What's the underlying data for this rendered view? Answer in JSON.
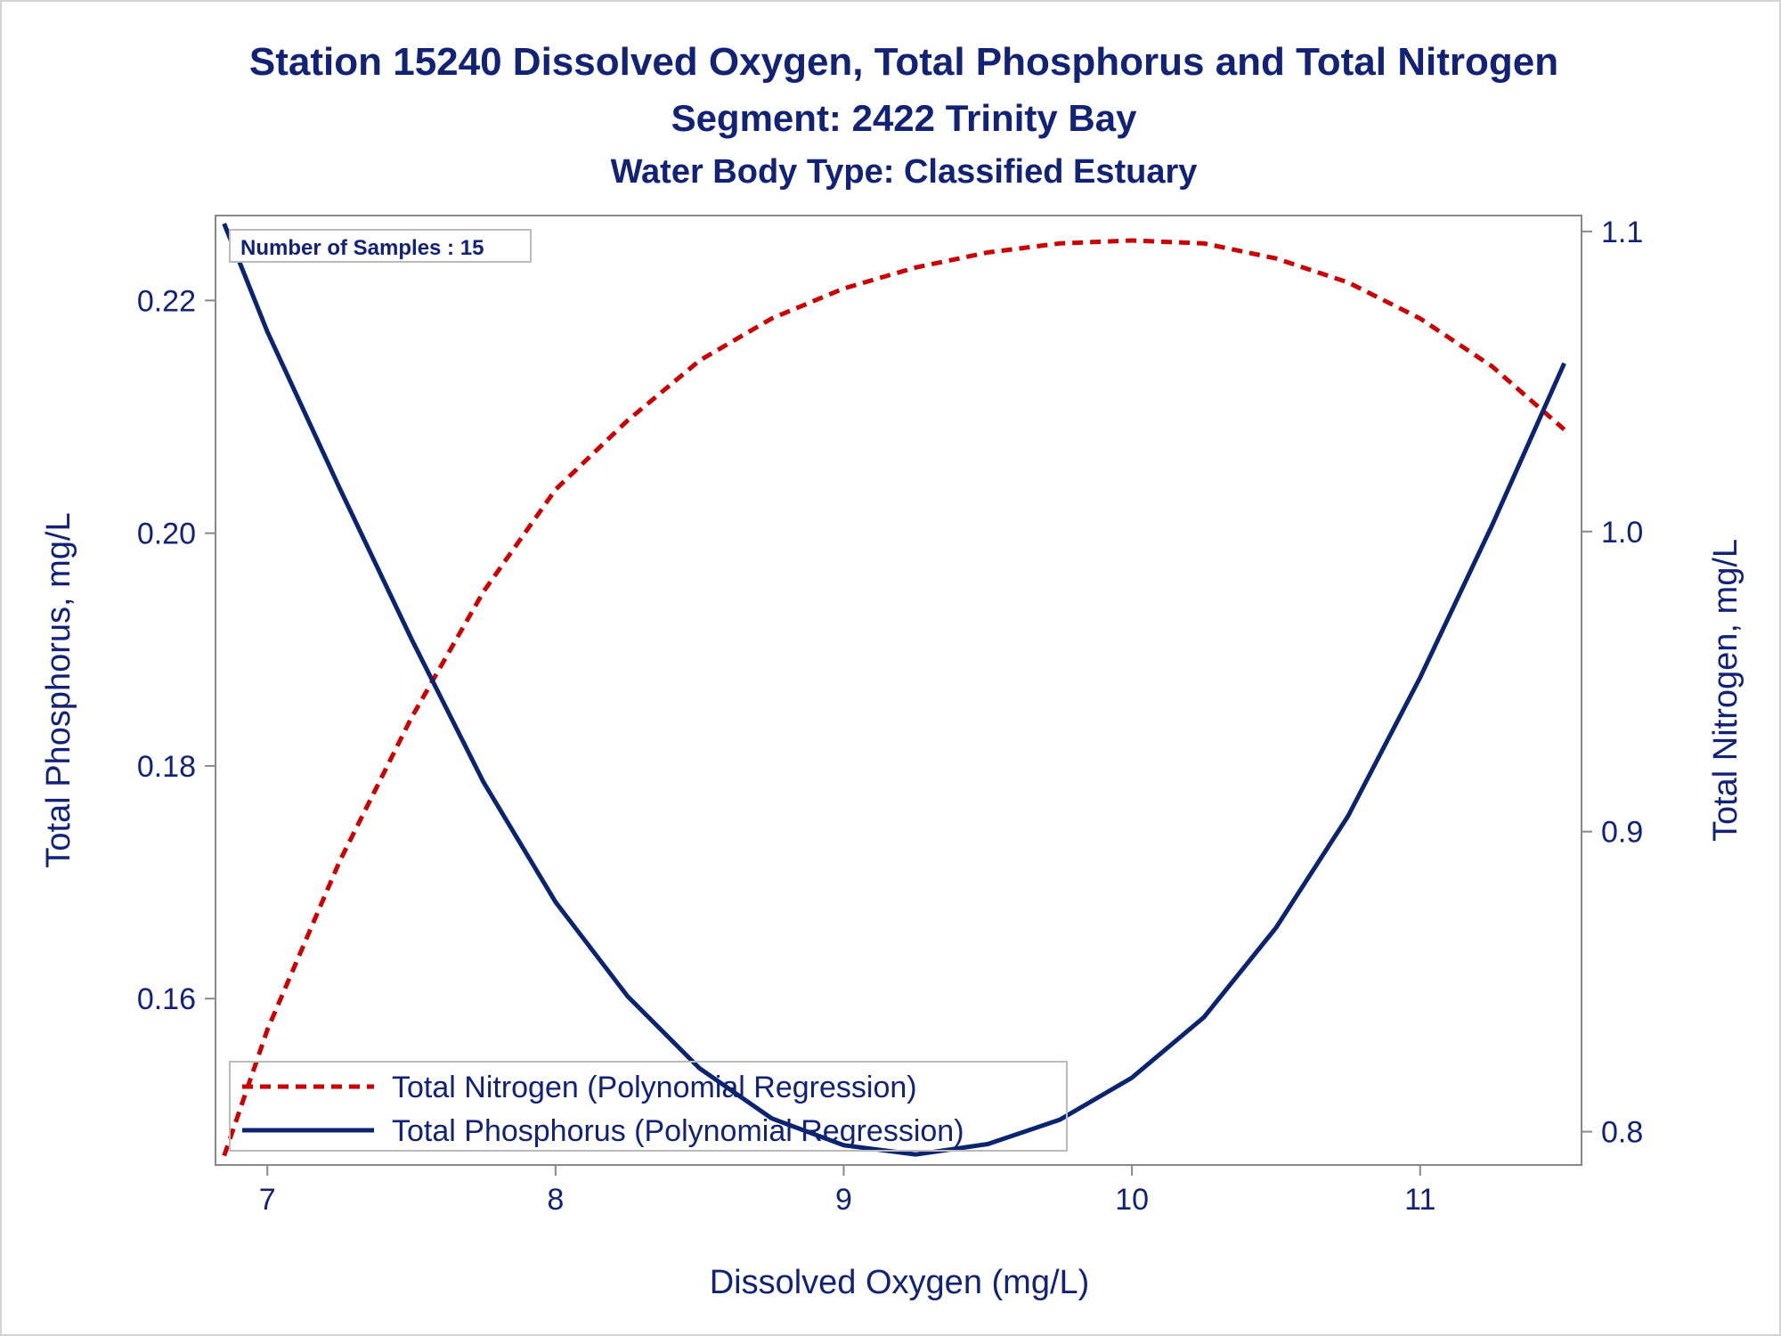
{
  "titles": {
    "line1": "Station 15240  Dissolved Oxygen, Total Phosphorus and Total Nitrogen",
    "line2": "Segment: 2422  Trinity Bay",
    "line3": "Water Body Type: Classified Estuary"
  },
  "inset_label": "Number of Samples : 15",
  "colors": {
    "text": "#112277",
    "phosphorus": "#0a2472",
    "nitrogen": "#cc0000",
    "frame": "#888888"
  },
  "chart_data": {
    "type": "line",
    "title": "Station 15240  Dissolved Oxygen, Total Phosphorus and Total Nitrogen",
    "xlabel": "Dissolved Oxygen (mg/L)",
    "ylabel": "Total Phosphorus, mg/L",
    "y2label": "Total Nitrogen, mg/L",
    "xlim": [
      6.82,
      11.56
    ],
    "ylim": [
      0.1457,
      0.2273
    ],
    "y2lim": [
      0.7889,
      1.1053
    ],
    "x_ticks": [
      "7",
      "8",
      "9",
      "10",
      "11"
    ],
    "y_ticks": [
      "0.16",
      "0.18",
      "0.20",
      "0.22"
    ],
    "y2_ticks": [
      "0.8",
      "0.9",
      "1.0",
      "1.1"
    ],
    "grid": false,
    "legend_position": "bottom-left",
    "series": [
      {
        "name": "Total Nitrogen (Polynomial Regression)",
        "axis": "right",
        "style": "dashed",
        "x": [
          6.85,
          7.0,
          7.25,
          7.5,
          7.75,
          8.0,
          8.25,
          8.5,
          8.75,
          9.0,
          9.25,
          9.5,
          9.75,
          10.0,
          10.25,
          10.5,
          10.75,
          11.0,
          11.25,
          11.5
        ],
        "values": [
          0.792,
          0.834,
          0.89,
          0.938,
          0.98,
          1.014,
          1.037,
          1.057,
          1.071,
          1.081,
          1.088,
          1.093,
          1.096,
          1.097,
          1.096,
          1.091,
          1.083,
          1.071,
          1.055,
          1.034
        ]
      },
      {
        "name": "Total Phosphorus (Polynomial Regression)",
        "axis": "left",
        "style": "solid",
        "x": [
          6.85,
          7.0,
          7.25,
          7.5,
          7.75,
          8.0,
          8.25,
          8.5,
          8.75,
          9.0,
          9.25,
          9.5,
          9.75,
          10.0,
          10.25,
          10.5,
          10.75,
          11.0,
          11.25,
          11.5
        ],
        "values": [
          0.2266,
          0.2173,
          0.2039,
          0.1909,
          0.1786,
          0.1683,
          0.1602,
          0.154,
          0.1497,
          0.1474,
          0.1466,
          0.1475,
          0.1496,
          0.1532,
          0.1584,
          0.1661,
          0.1757,
          0.1876,
          0.2007,
          0.2146
        ]
      }
    ]
  }
}
